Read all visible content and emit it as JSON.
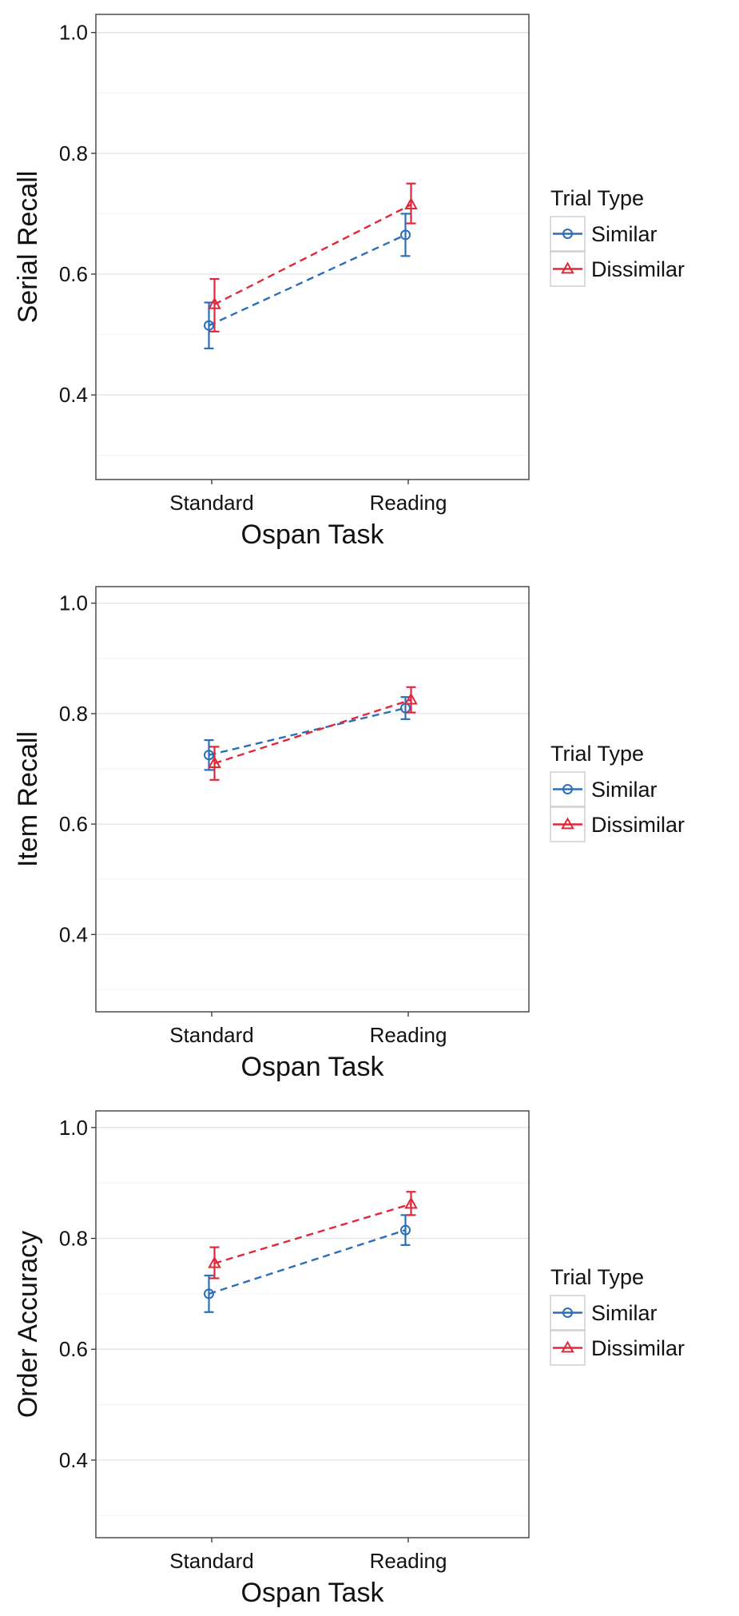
{
  "colors": {
    "Similar": "#2c6fb7",
    "Dissimilar": "#e0283a"
  },
  "chart_data": [
    {
      "type": "line",
      "xlabel": "Ospan Task",
      "ylabel": "Serial Recall",
      "categories": [
        "Standard",
        "Reading"
      ],
      "ylim": [
        0.26,
        1.03
      ],
      "yticks": [
        "0.4",
        "0.6",
        "0.8",
        "1.0"
      ],
      "grid": true,
      "legend": {
        "title": "Trial Type",
        "position": "right",
        "entries": [
          "Similar",
          "Dissimilar"
        ]
      },
      "series": [
        {
          "name": "Similar",
          "marker": "circle",
          "values": [
            0.515,
            0.665
          ],
          "lower": [
            0.477,
            0.63
          ],
          "upper": [
            0.553,
            0.7
          ]
        },
        {
          "name": "Dissimilar",
          "marker": "triangle",
          "values": [
            0.55,
            0.715
          ],
          "lower": [
            0.505,
            0.684
          ],
          "upper": [
            0.592,
            0.75
          ]
        }
      ]
    },
    {
      "type": "line",
      "xlabel": "Ospan Task",
      "ylabel": "Item Recall",
      "categories": [
        "Standard",
        "Reading"
      ],
      "ylim": [
        0.26,
        1.03
      ],
      "yticks": [
        "0.4",
        "0.6",
        "0.8",
        "1.0"
      ],
      "grid": true,
      "legend": {
        "title": "Trial Type",
        "position": "right",
        "entries": [
          "Similar",
          "Dissimilar"
        ]
      },
      "series": [
        {
          "name": "Similar",
          "marker": "circle",
          "values": [
            0.725,
            0.81
          ],
          "lower": [
            0.698,
            0.79
          ],
          "upper": [
            0.752,
            0.83
          ]
        },
        {
          "name": "Dissimilar",
          "marker": "triangle",
          "values": [
            0.71,
            0.825
          ],
          "lower": [
            0.68,
            0.802
          ],
          "upper": [
            0.74,
            0.848
          ]
        }
      ]
    },
    {
      "type": "line",
      "xlabel": "Ospan Task",
      "ylabel": "Order Accuracy",
      "categories": [
        "Standard",
        "Reading"
      ],
      "ylim": [
        0.26,
        1.03
      ],
      "yticks": [
        "0.4",
        "0.6",
        "0.8",
        "1.0"
      ],
      "grid": true,
      "legend": {
        "title": "Trial Type",
        "position": "right",
        "entries": [
          "Similar",
          "Dissimilar"
        ]
      },
      "series": [
        {
          "name": "Similar",
          "marker": "circle",
          "values": [
            0.7,
            0.815
          ],
          "lower": [
            0.667,
            0.788
          ],
          "upper": [
            0.733,
            0.842
          ]
        },
        {
          "name": "Dissimilar",
          "marker": "triangle",
          "values": [
            0.755,
            0.862
          ],
          "lower": [
            0.728,
            0.842
          ],
          "upper": [
            0.784,
            0.884
          ]
        }
      ]
    }
  ]
}
